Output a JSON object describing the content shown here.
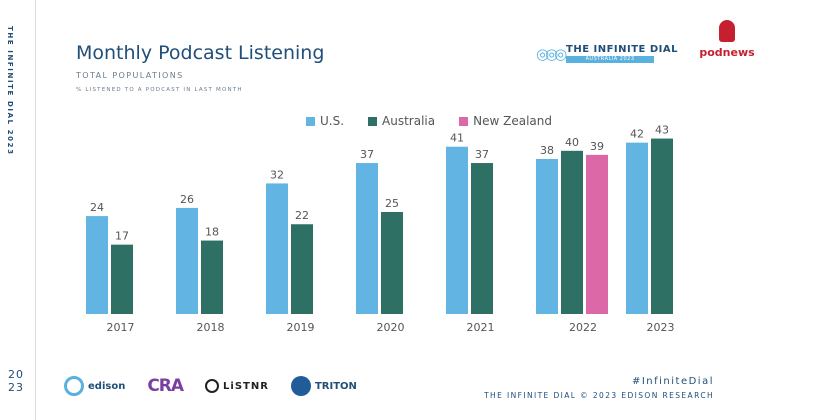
{
  "rail": {
    "vertical_text": "THE INFINITE DIAL 2023",
    "year_top": "20",
    "year_bottom": "23"
  },
  "header": {
    "title": "Monthly Podcast Listening",
    "subtitle": "TOTAL POPULATIONS",
    "note": "% LISTENED TO A PODCAST IN LAST MONTH"
  },
  "logos": {
    "infinite_dial_name": "THE INFINITE DIAL",
    "infinite_dial_band": "AUSTRALIA 2023",
    "podnews": "podnews",
    "edison": "edison",
    "cra": "CRA",
    "listnr": "LiSTNR",
    "triton": "TRITON"
  },
  "footer": {
    "hashtag": "#InfiniteDial",
    "copyright": "THE INFINITE DIAL © 2023 EDISON RESEARCH"
  },
  "colors": {
    "us": "#62b4e3",
    "australia": "#2e7063",
    "new_zealand": "#dd68a8"
  },
  "chart_data": {
    "type": "bar",
    "title": "Monthly Podcast Listening",
    "ylim": [
      0,
      50
    ],
    "grid": false,
    "legend": "top-center",
    "categories": [
      "2017",
      "2018",
      "2019",
      "2020",
      "2021",
      "2022",
      "2023"
    ],
    "series": [
      {
        "name": "U.S.",
        "values": [
          24,
          26,
          32,
          37,
          41,
          38,
          42
        ]
      },
      {
        "name": "Australia",
        "values": [
          17,
          18,
          22,
          25,
          37,
          40,
          43
        ]
      },
      {
        "name": "New Zealand",
        "values": [
          null,
          null,
          null,
          null,
          null,
          39,
          null
        ]
      }
    ]
  }
}
